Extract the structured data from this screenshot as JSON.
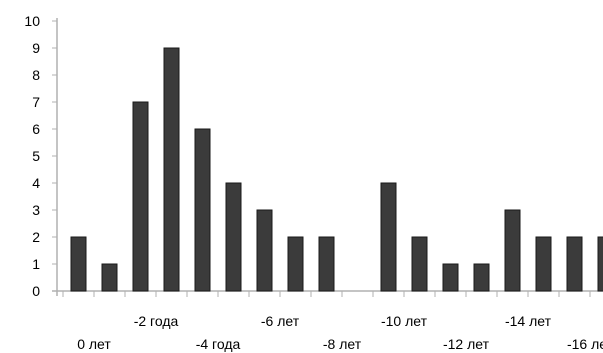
{
  "chart_data": {
    "type": "bar",
    "categories": [
      "0 лет",
      "",
      "-2 года",
      "",
      "-4 года",
      "",
      "-6 лет",
      "",
      "-8 лет",
      "",
      "-10 лет",
      "",
      "-12 лет",
      "",
      "-14 лет",
      "",
      "-16 лет",
      ""
    ],
    "values": [
      2,
      1,
      7,
      9,
      6,
      4,
      3,
      2,
      2,
      0,
      4,
      2,
      1,
      1,
      3,
      2,
      2,
      2
    ],
    "title": "",
    "xlabel": "",
    "ylabel": "",
    "ylim": [
      0,
      10
    ],
    "yticks": [
      "0",
      "1",
      "2",
      "3",
      "4",
      "5",
      "6",
      "7",
      "8",
      "9",
      "10"
    ],
    "grid": false,
    "legend": "none",
    "bar_color": "#3b3b3b",
    "axis_color": "#b0b0b0"
  }
}
